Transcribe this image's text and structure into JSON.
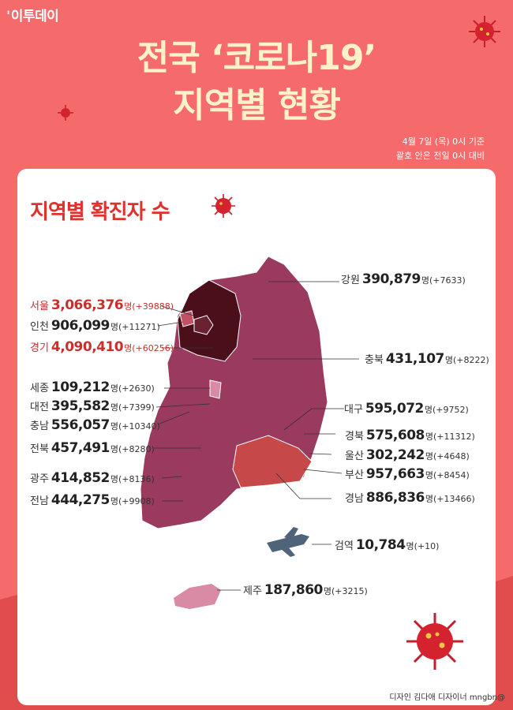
{
  "brand": "이투데이",
  "title_line1": "전국 ‘코로나19’",
  "title_line2": "지역별 현황",
  "basis_line1": "4월 7일 (목) 0시 기준",
  "basis_line2": "괄호 안은 전일 0시 대비",
  "section_title": "지역별 확진자 수",
  "unit": "명",
  "regions": [
    {
      "name": "강원",
      "count": "390,879",
      "change": "(+7633)",
      "highlight": false
    },
    {
      "name": "서울",
      "count": "3,066,376",
      "change": "(+39888)",
      "highlight": true
    },
    {
      "name": "인천",
      "count": "906,099",
      "change": "(+11271)",
      "highlight": false
    },
    {
      "name": "경기",
      "count": "4,090,410",
      "change": "(+60256)",
      "highlight": true
    },
    {
      "name": "충북",
      "count": "431,107",
      "change": "(+8222)",
      "highlight": false
    },
    {
      "name": "세종",
      "count": "109,212",
      "change": "(+2630)",
      "highlight": false
    },
    {
      "name": "대전",
      "count": "395,582",
      "change": "(+7399)",
      "highlight": false
    },
    {
      "name": "충남",
      "count": "556,057",
      "change": "(+10340)",
      "highlight": false
    },
    {
      "name": "대구",
      "count": "595,072",
      "change": "(+9752)",
      "highlight": false
    },
    {
      "name": "경북",
      "count": "575,608",
      "change": "(+11312)",
      "highlight": false
    },
    {
      "name": "전북",
      "count": "457,491",
      "change": "(+8280)",
      "highlight": false
    },
    {
      "name": "울산",
      "count": "302,242",
      "change": "(+4648)",
      "highlight": false
    },
    {
      "name": "부산",
      "count": "957,663",
      "change": "(+8454)",
      "highlight": false
    },
    {
      "name": "광주",
      "count": "414,852",
      "change": "(+8136)",
      "highlight": false
    },
    {
      "name": "경남",
      "count": "886,836",
      "change": "(+13466)",
      "highlight": false
    },
    {
      "name": "전남",
      "count": "444,275",
      "change": "(+9908)",
      "highlight": false
    },
    {
      "name": "검역",
      "count": "10,784",
      "change": "(+10)",
      "highlight": false
    },
    {
      "name": "제주",
      "count": "187,860",
      "change": "(+3215)",
      "highlight": false
    }
  ],
  "credit": "디자인 김다애 디자이너 mngbn@",
  "colors": {
    "background": "#f56b6b",
    "accent": "#e0312d",
    "title": "#fff2c9",
    "map_base": "#9a3a5f",
    "map_dark": "#4a0f18",
    "map_gyeongnam": "#c64848",
    "jeju": "#d98aa4"
  }
}
